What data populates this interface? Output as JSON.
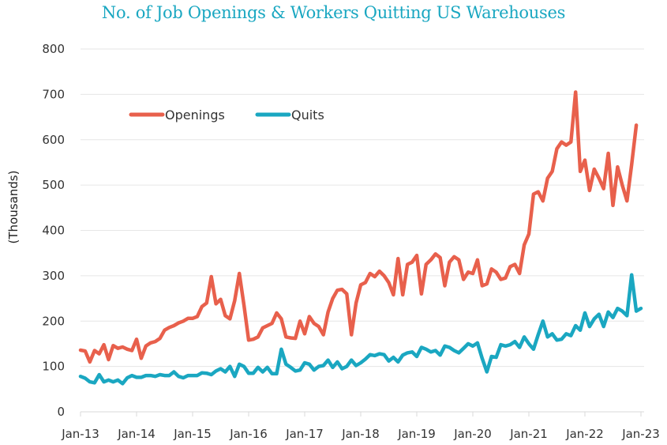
{
  "chart_data": {
    "type": "line",
    "title": "No. of Job Openings & Workers Quitting US Warehouses",
    "xlabel": "",
    "ylabel": "(Thousands)",
    "ylim": [
      0,
      800
    ],
    "yticks": [
      0,
      100,
      200,
      300,
      400,
      500,
      600,
      700,
      800
    ],
    "ytick_labels": [
      "0",
      "100",
      "200",
      "300",
      "400",
      "500",
      "600",
      "700",
      "800"
    ],
    "xtick_labels": [
      "Jan-13",
      "Jan-14",
      "Jan-15",
      "Jan-16",
      "Jan-17",
      "Jan-18",
      "Jan-19",
      "Jan-20",
      "Jan-21",
      "Jan-22",
      "Jan-23"
    ],
    "x_start": "Jan-13",
    "x_frequency": "monthly",
    "grid": "horizontal",
    "legend_position": "top-left",
    "series": [
      {
        "name": "Openings",
        "color": "#e8604c",
        "values": [
          136,
          134,
          110,
          135,
          128,
          148,
          115,
          146,
          140,
          143,
          138,
          135,
          160,
          118,
          145,
          152,
          155,
          162,
          180,
          186,
          190,
          196,
          200,
          206,
          206,
          210,
          232,
          240,
          298,
          238,
          248,
          212,
          205,
          245,
          305,
          235,
          158,
          160,
          165,
          185,
          190,
          195,
          218,
          205,
          165,
          163,
          162,
          200,
          172,
          210,
          195,
          188,
          170,
          220,
          250,
          268,
          270,
          260,
          170,
          240,
          280,
          285,
          305,
          298,
          310,
          300,
          285,
          258,
          338,
          258,
          325,
          330,
          345,
          260,
          325,
          335,
          348,
          340,
          278,
          330,
          342,
          335,
          292,
          308,
          305,
          335,
          278,
          282,
          315,
          308,
          292,
          295,
          320,
          325,
          305,
          368,
          392,
          480,
          485,
          465,
          515,
          530,
          580,
          595,
          588,
          595,
          705,
          530,
          555,
          488,
          535,
          515,
          492,
          570,
          455,
          540,
          500,
          465,
          545,
          632
        ],
        "value_count": 120
      },
      {
        "name": "Quits",
        "color": "#1aa7c1",
        "values": [
          78,
          74,
          66,
          64,
          82,
          66,
          70,
          66,
          70,
          62,
          75,
          80,
          76,
          76,
          80,
          80,
          78,
          82,
          80,
          80,
          88,
          78,
          75,
          80,
          80,
          80,
          86,
          85,
          82,
          90,
          95,
          88,
          100,
          78,
          105,
          100,
          85,
          85,
          98,
          88,
          98,
          84,
          84,
          138,
          105,
          98,
          90,
          92,
          108,
          105,
          92,
          100,
          102,
          114,
          98,
          110,
          95,
          100,
          114,
          102,
          108,
          116,
          126,
          124,
          128,
          126,
          112,
          120,
          110,
          125,
          130,
          132,
          122,
          142,
          138,
          132,
          135,
          125,
          145,
          142,
          135,
          130,
          140,
          150,
          145,
          152,
          118,
          88,
          122,
          120,
          148,
          145,
          148,
          155,
          142,
          165,
          150,
          138,
          170,
          200,
          165,
          172,
          158,
          160,
          172,
          168,
          190,
          180,
          218,
          188,
          205,
          215,
          188,
          220,
          208,
          228,
          222,
          212,
          302,
          222,
          228
        ],
        "value_count": 121
      }
    ]
  }
}
